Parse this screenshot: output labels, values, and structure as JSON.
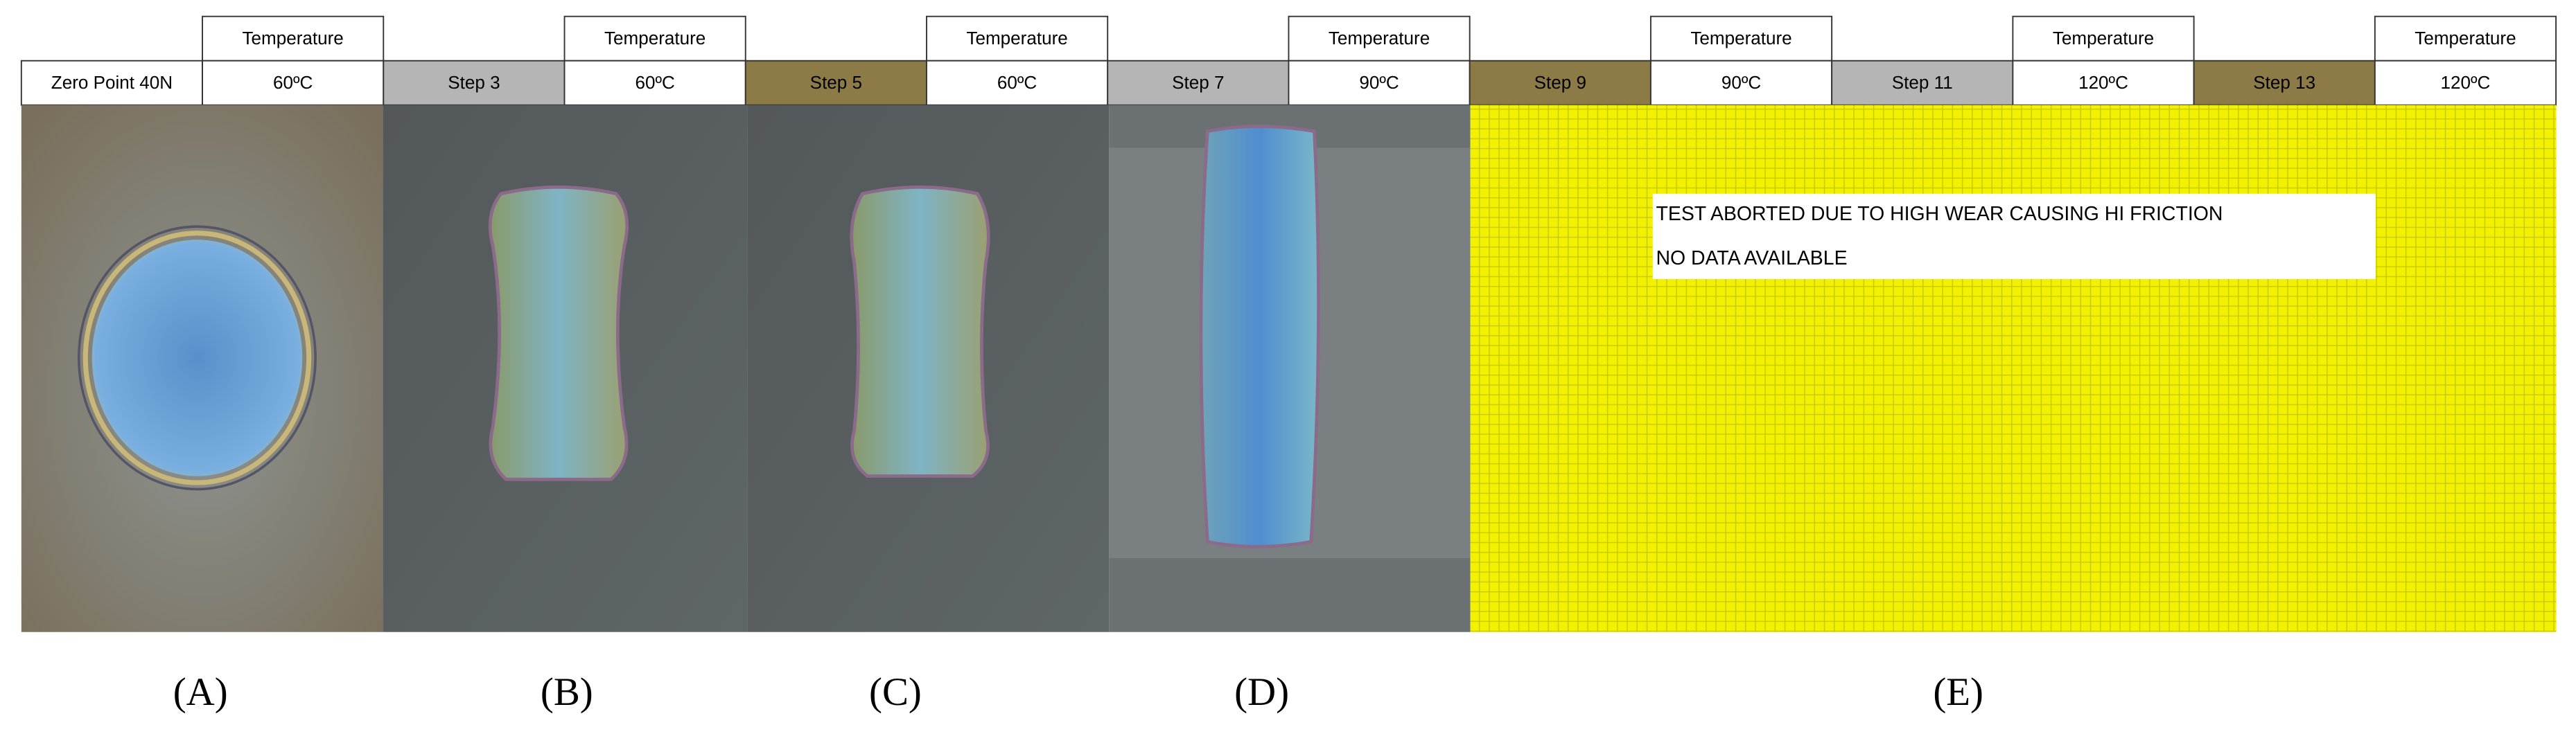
{
  "columns": [
    {
      "step": "Zero Point 40N",
      "temperature_header": "Temperature",
      "temperature": "60ºC"
    },
    {
      "step": "Step 3",
      "temperature_header": "Temperature",
      "temperature": "60ºC"
    },
    {
      "step": "Step 5",
      "temperature_header": "Temperature",
      "temperature": "60ºC"
    },
    {
      "step": "Step 7",
      "temperature_header": "Temperature",
      "temperature": "90ºC"
    },
    {
      "step": "Step 9",
      "temperature_header": "Temperature",
      "temperature": "90ºC"
    },
    {
      "step": "Step 11",
      "temperature_header": "Temperature",
      "temperature": "120ºC"
    },
    {
      "step": "Step 13",
      "temperature_header": "Temperature",
      "temperature": "120ºC"
    }
  ],
  "notice": [
    "TEST ABORTED DUE TO HIGH WEAR CAUSING HI FRICTION",
    "NO DATA AVAILABLE"
  ],
  "panel_labels": [
    "(A)",
    "(B)",
    "(C)",
    "(D)",
    "(E)"
  ]
}
